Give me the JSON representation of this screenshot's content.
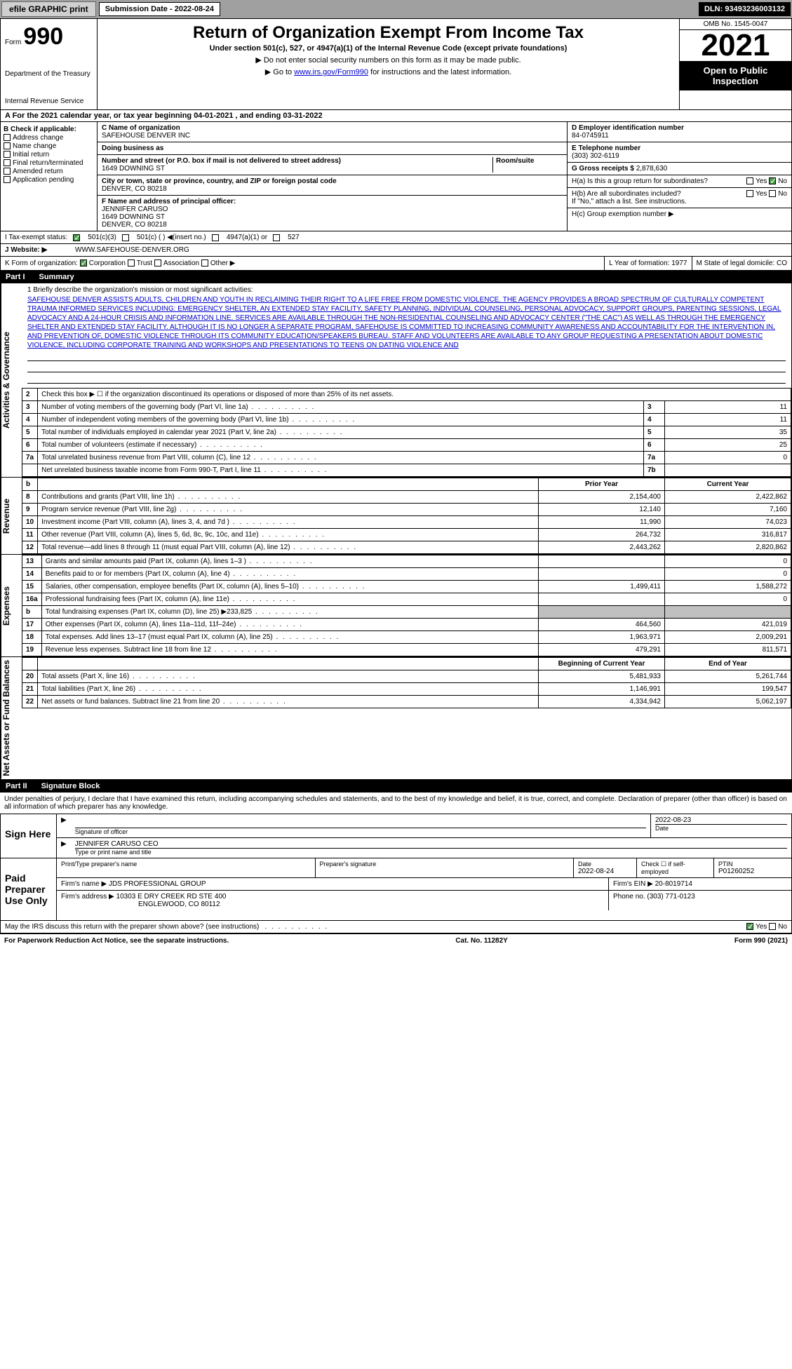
{
  "top": {
    "efile": "efile GRAPHIC print",
    "sub_label": "Submission Date - 2022-08-24",
    "dln": "DLN: 93493236003132"
  },
  "header": {
    "form_prefix": "Form",
    "form_num": "990",
    "dept": "Department of the Treasury",
    "irs": "Internal Revenue Service",
    "title": "Return of Organization Exempt From Income Tax",
    "subtitle": "Under section 501(c), 527, or 4947(a)(1) of the Internal Revenue Code (except private foundations)",
    "inst1": "▶ Do not enter social security numbers on this form as it may be made public.",
    "inst2": "▶ Go to ",
    "inst2_link": "www.irs.gov/Form990",
    "inst2_after": " for instructions and the latest information.",
    "omb": "OMB No. 1545-0047",
    "year": "2021",
    "open": "Open to Public Inspection"
  },
  "line_a": "A For the 2021 calendar year, or tax year beginning 04-01-2021  , and ending 03-31-2022",
  "col_b": {
    "hdr": "B Check if applicable:",
    "items": [
      "Address change",
      "Name change",
      "Initial return",
      "Final return/terminated",
      "Amended return",
      "Application pending"
    ]
  },
  "org": {
    "c_lbl": "C Name of organization",
    "name": "SAFEHOUSE DENVER INC",
    "dba_lbl": "Doing business as",
    "addr_lbl": "Number and street (or P.O. box if mail is not delivered to street address)",
    "room_lbl": "Room/suite",
    "addr": "1649 DOWNING ST",
    "city_lbl": "City or town, state or province, country, and ZIP or foreign postal code",
    "city": "DENVER, CO  80218",
    "f_lbl": "F  Name and address of principal officer:",
    "f_name": "JENNIFER CARUSO",
    "f_addr1": "1649 DOWNING ST",
    "f_addr2": "DENVER, CO  80218"
  },
  "right": {
    "d_lbl": "D Employer identification number",
    "ein": "84-0745911",
    "e_lbl": "E Telephone number",
    "phone": "(303) 302-6119",
    "g_lbl": "G Gross receipts $",
    "gross": "2,878,630",
    "ha": "H(a)  Is this a group return for subordinates?",
    "hb": "H(b)  Are all subordinates included?",
    "hb_note": "If \"No,\" attach a list. See instructions.",
    "hc": "H(c)  Group exemption number ▶",
    "yes": "Yes",
    "no": "No"
  },
  "row_i": {
    "lbl": "I  Tax-exempt status:",
    "o1": "501(c)(3)",
    "o2": "501(c) (  ) ◀(insert no.)",
    "o3": "4947(a)(1) or",
    "o4": "527"
  },
  "row_j": {
    "lbl": "J  Website: ▶",
    "val": "WWW.SAFEHOUSE-DENVER.ORG"
  },
  "row_k": {
    "lbl": "K Form of organization:",
    "corp": "Corporation",
    "trust": "Trust",
    "assoc": "Association",
    "other": "Other ▶",
    "l_lbl": "L Year of formation:",
    "l_val": "1977",
    "m_lbl": "M State of legal domicile:",
    "m_val": "CO"
  },
  "part1": {
    "num": "Part I",
    "title": "Summary"
  },
  "mission": {
    "lbl": "1  Briefly describe the organization's mission or most significant activities:",
    "text": "SAFEHOUSE DENVER ASSISTS ADULTS, CHILDREN AND YOUTH IN RECLAIMING THEIR RIGHT TO A LIFE FREE FROM DOMESTIC VIOLENCE. THE AGENCY PROVIDES A BROAD SPECTRUM OF CULTURALLY COMPETENT TRAUMA INFORMED SERVICES INCLUDING: EMERGENCY SHELTER, AN EXTENDED STAY FACILITY, SAFETY PLANNING, INDIVIDUAL COUNSELING, PERSONAL ADVOCACY, SUPPORT GROUPS, PARENTING SESSIONS, LEGAL ADVOCACY AND A 24-HOUR CRISIS AND INFORMATION LINE. SERVICES ARE AVAILABLE THROUGH THE NON-RESIDENTIAL COUNSELING AND ADVOCACY CENTER (\"THE CAC\") AS WELL AS THROUGH THE EMERGENCY SHELTER AND EXTENDED STAY FACILITY. ALTHOUGH IT IS NO LONGER A SEPARATE PROGRAM, SAFEHOUSE IS COMMITTED TO INCREASING COMMUNITY AWARENESS AND ACCOUNTABILITY FOR THE INTERVENTION IN, AND PREVENTION OF, DOMESTIC VIOLENCE THROUGH ITS COMMUNITY EDUCATION/SPEAKERS BUREAU. STAFF AND VOLUNTEERS ARE AVAILABLE TO ANY GROUP REQUESTING A PRESENTATION ABOUT DOMESTIC VIOLENCE, INCLUDING CORPORATE TRAINING AND WORKSHOPS AND PRESENTATIONS TO TEENS ON DATING VIOLENCE AND"
  },
  "gov_rows": [
    {
      "n": "2",
      "d": "Check this box ▶ ☐ if the organization discontinued its operations or disposed of more than 25% of its net assets.",
      "ln": "",
      "v": ""
    },
    {
      "n": "3",
      "d": "Number of voting members of the governing body (Part VI, line 1a)",
      "ln": "3",
      "v": "11"
    },
    {
      "n": "4",
      "d": "Number of independent voting members of the governing body (Part VI, line 1b)",
      "ln": "4",
      "v": "11"
    },
    {
      "n": "5",
      "d": "Total number of individuals employed in calendar year 2021 (Part V, line 2a)",
      "ln": "5",
      "v": "35"
    },
    {
      "n": "6",
      "d": "Total number of volunteers (estimate if necessary)",
      "ln": "6",
      "v": "25"
    },
    {
      "n": "7a",
      "d": "Total unrelated business revenue from Part VIII, column (C), line 12",
      "ln": "7a",
      "v": "0"
    },
    {
      "n": "",
      "d": "Net unrelated business taxable income from Form 990-T, Part I, line 11",
      "ln": "7b",
      "v": ""
    }
  ],
  "rev_hdr": {
    "b": "b",
    "prior": "Prior Year",
    "current": "Current Year"
  },
  "rev_rows": [
    {
      "n": "8",
      "d": "Contributions and grants (Part VIII, line 1h)",
      "p": "2,154,400",
      "c": "2,422,862"
    },
    {
      "n": "9",
      "d": "Program service revenue (Part VIII, line 2g)",
      "p": "12,140",
      "c": "7,160"
    },
    {
      "n": "10",
      "d": "Investment income (Part VIII, column (A), lines 3, 4, and 7d )",
      "p": "11,990",
      "c": "74,023"
    },
    {
      "n": "11",
      "d": "Other revenue (Part VIII, column (A), lines 5, 6d, 8c, 9c, 10c, and 11e)",
      "p": "264,732",
      "c": "316,817"
    },
    {
      "n": "12",
      "d": "Total revenue—add lines 8 through 11 (must equal Part VIII, column (A), line 12)",
      "p": "2,443,262",
      "c": "2,820,862"
    }
  ],
  "exp_rows": [
    {
      "n": "13",
      "d": "Grants and similar amounts paid (Part IX, column (A), lines 1–3 )",
      "p": "",
      "c": "0"
    },
    {
      "n": "14",
      "d": "Benefits paid to or for members (Part IX, column (A), line 4)",
      "p": "",
      "c": "0"
    },
    {
      "n": "15",
      "d": "Salaries, other compensation, employee benefits (Part IX, column (A), lines 5–10)",
      "p": "1,499,411",
      "c": "1,588,272"
    },
    {
      "n": "16a",
      "d": "Professional fundraising fees (Part IX, column (A), line 11e)",
      "p": "",
      "c": "0"
    },
    {
      "n": "b",
      "d": "Total fundraising expenses (Part IX, column (D), line 25) ▶233,825",
      "p": "GRAY",
      "c": "GRAY"
    },
    {
      "n": "17",
      "d": "Other expenses (Part IX, column (A), lines 11a–11d, 11f–24e)",
      "p": "464,560",
      "c": "421,019"
    },
    {
      "n": "18",
      "d": "Total expenses. Add lines 13–17 (must equal Part IX, column (A), line 25)",
      "p": "1,963,971",
      "c": "2,009,291"
    },
    {
      "n": "19",
      "d": "Revenue less expenses. Subtract line 18 from line 12",
      "p": "479,291",
      "c": "811,571"
    }
  ],
  "na_hdr": {
    "b": "Beginning of Current Year",
    "e": "End of Year"
  },
  "na_rows": [
    {
      "n": "20",
      "d": "Total assets (Part X, line 16)",
      "p": "5,481,933",
      "c": "5,261,744"
    },
    {
      "n": "21",
      "d": "Total liabilities (Part X, line 26)",
      "p": "1,146,991",
      "c": "199,547"
    },
    {
      "n": "22",
      "d": "Net assets or fund balances. Subtract line 21 from line 20",
      "p": "4,334,942",
      "c": "5,062,197"
    }
  ],
  "part2": {
    "num": "Part II",
    "title": "Signature Block"
  },
  "penalty": "Under penalties of perjury, I declare that I have examined this return, including accompanying schedules and statements, and to the best of my knowledge and belief, it is true, correct, and complete. Declaration of preparer (other than officer) is based on all information of which preparer has any knowledge.",
  "sign": {
    "here": "Sign Here",
    "sig_lbl": "Signature of officer",
    "date": "2022-08-23",
    "date_lbl": "Date",
    "name": "JENNIFER CARUSO CEO",
    "name_lbl": "Type or print name and title"
  },
  "paid": {
    "lbl": "Paid Preparer Use Only",
    "print_lbl": "Print/Type preparer's name",
    "prep_sig_lbl": "Preparer's signature",
    "pdate_lbl": "Date",
    "pdate": "2022-08-24",
    "check_lbl": "Check ☐ if self-employed",
    "ptin_lbl": "PTIN",
    "ptin": "P01260252",
    "firm_name_lbl": "Firm's name    ▶",
    "firm_name": "JDS PROFESSIONAL GROUP",
    "firm_ein_lbl": "Firm's EIN ▶",
    "firm_ein": "20-8019714",
    "firm_addr_lbl": "Firm's address ▶",
    "firm_addr": "10303 E DRY CREEK RD STE 400",
    "firm_city": "ENGLEWOOD, CO  80112",
    "phone_lbl": "Phone no.",
    "phone": "(303) 771-0123"
  },
  "discuss": "May the IRS discuss this return with the preparer shown above? (see instructions)",
  "footer": {
    "l": "For Paperwork Reduction Act Notice, see the separate instructions.",
    "m": "Cat. No. 11282Y",
    "r": "Form 990 (2021)"
  },
  "vtabs": {
    "gov": "Activities & Governance",
    "rev": "Revenue",
    "exp": "Expenses",
    "na": "Net Assets or Fund Balances"
  },
  "colors": {
    "link": "#0000cc",
    "check_green": "#4a9e4a",
    "gray_bg": "#c0c0c0"
  }
}
